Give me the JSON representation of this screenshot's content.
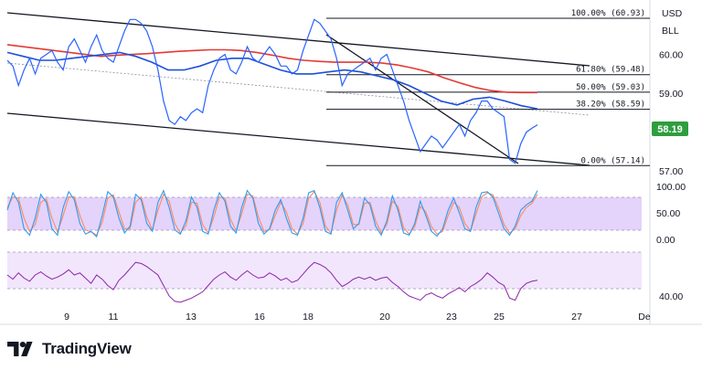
{
  "chart_data": {
    "type": "line",
    "symbol": "USD\nBLL",
    "symbol_lines": [
      "USD",
      "BLL"
    ],
    "x_ticks": [
      "9",
      "11",
      "13",
      "16",
      "18",
      "20",
      "23",
      "25",
      "27",
      "De"
    ],
    "price_ticks": [
      "60.00",
      "59.00",
      "58.00",
      "57.00"
    ],
    "price_range": [
      56.7,
      61.4
    ],
    "last_price": "58.19",
    "fib_levels": [
      {
        "label": "100.00% (60.93)",
        "value": 60.93
      },
      {
        "label": "61.80% (59.48)",
        "value": 59.48
      },
      {
        "label": "50.00% (59.03)",
        "value": 59.03
      },
      {
        "label": "38.20% (58.59)",
        "value": 58.59
      },
      {
        "label": "0.00% (57.14)",
        "value": 57.14
      }
    ],
    "price_series": [
      59.85,
      59.7,
      59.2,
      59.6,
      59.9,
      59.5,
      59.9,
      60.0,
      60.1,
      59.8,
      59.6,
      60.2,
      60.4,
      60.1,
      59.8,
      60.2,
      60.5,
      60.1,
      59.9,
      59.8,
      60.2,
      60.6,
      60.9,
      60.9,
      60.8,
      60.6,
      60.2,
      59.6,
      58.8,
      58.3,
      58.2,
      58.4,
      58.3,
      58.5,
      58.6,
      58.5,
      59.2,
      59.6,
      59.9,
      60.0,
      59.6,
      59.5,
      59.8,
      60.2,
      59.9,
      59.8,
      60.0,
      60.2,
      60.0,
      59.7,
      59.7,
      59.5,
      59.6,
      60.1,
      60.5,
      60.9,
      60.8,
      60.6,
      60.4,
      59.9,
      59.2,
      59.5,
      59.6,
      59.7,
      59.8,
      59.9,
      59.6,
      59.9,
      60.0,
      59.6,
      59.2,
      58.8,
      58.3,
      57.9,
      57.5,
      57.7,
      57.9,
      57.8,
      57.6,
      57.8,
      58.0,
      58.2,
      57.9,
      58.3,
      58.5,
      58.8,
      58.8,
      58.6,
      58.5,
      58.4,
      57.3,
      57.2,
      57.7,
      58.0,
      58.1,
      58.19
    ],
    "sma_red": [
      60.25,
      60.2,
      60.15,
      60.1,
      60.05,
      60.0,
      59.95,
      59.98,
      60.0,
      60.02,
      60.05,
      60.08,
      60.1,
      60.12,
      60.12,
      60.1,
      60.05,
      59.98,
      59.9,
      59.85,
      59.82,
      59.8,
      59.8,
      59.8,
      59.78,
      59.73,
      59.65,
      59.55,
      59.4,
      59.27,
      59.15,
      59.07,
      59.03,
      59.02,
      59.02
    ],
    "sma_blue": [
      60.05,
      59.95,
      59.85,
      59.85,
      59.9,
      59.95,
      60.0,
      60.05,
      59.95,
      59.8,
      59.6,
      59.6,
      59.7,
      59.85,
      59.9,
      59.9,
      59.75,
      59.6,
      59.5,
      59.5,
      59.55,
      59.6,
      59.55,
      59.45,
      59.35,
      59.2,
      59.0,
      58.8,
      58.7,
      58.85,
      58.9,
      58.8,
      58.68,
      58.6
    ],
    "stoch_range": [
      0,
      100
    ],
    "stoch_ticks": [
      "100.00",
      "50.00",
      "0.00"
    ],
    "stoch_k": [
      55,
      88,
      70,
      20,
      8,
      40,
      85,
      70,
      20,
      8,
      60,
      90,
      75,
      30,
      10,
      15,
      5,
      45,
      90,
      80,
      40,
      12,
      25,
      85,
      75,
      30,
      15,
      70,
      92,
      60,
      18,
      10,
      35,
      80,
      60,
      15,
      10,
      55,
      88,
      72,
      25,
      12,
      60,
      92,
      78,
      30,
      10,
      20,
      55,
      75,
      40,
      12,
      8,
      40,
      88,
      92,
      60,
      15,
      10,
      70,
      88,
      55,
      20,
      30,
      78,
      65,
      25,
      8,
      35,
      82,
      55,
      12,
      8,
      30,
      72,
      45,
      15,
      6,
      20,
      55,
      78,
      50,
      20,
      15,
      60,
      88,
      90,
      80,
      50,
      20,
      8,
      25,
      55,
      65,
      72,
      92
    ],
    "stoch_d": [
      60,
      80,
      78,
      40,
      15,
      28,
      70,
      76,
      40,
      14,
      45,
      80,
      80,
      45,
      18,
      14,
      8,
      32,
      78,
      84,
      52,
      20,
      20,
      70,
      80,
      42,
      18,
      55,
      85,
      72,
      30,
      12,
      26,
      70,
      68,
      28,
      12,
      42,
      80,
      78,
      38,
      16,
      48,
      85,
      82,
      42,
      15,
      18,
      45,
      70,
      52,
      20,
      10,
      30,
      78,
      90,
      70,
      25,
      12,
      55,
      84,
      65,
      28,
      28,
      68,
      70,
      35,
      12,
      28,
      72,
      62,
      22,
      10,
      24,
      62,
      52,
      24,
      10,
      15,
      45,
      70,
      60,
      30,
      16,
      48,
      80,
      88,
      84,
      60,
      28,
      12,
      20,
      45,
      60,
      68,
      85
    ],
    "rsi_ticks": [
      "40.00"
    ],
    "rsi_range": [
      0,
      100
    ],
    "rsi": [
      60,
      56,
      62,
      57,
      54,
      60,
      63,
      59,
      56,
      58,
      61,
      65,
      60,
      62,
      57,
      52,
      60,
      56,
      50,
      46,
      55,
      60,
      66,
      72,
      71,
      68,
      64,
      60,
      50,
      40,
      35,
      34,
      36,
      38,
      41,
      44,
      50,
      56,
      60,
      63,
      58,
      55,
      60,
      64,
      60,
      57,
      58,
      62,
      59,
      55,
      57,
      53,
      55,
      61,
      67,
      72,
      70,
      67,
      62,
      55,
      49,
      52,
      56,
      58,
      56,
      58,
      55,
      57,
      58,
      53,
      49,
      44,
      40,
      38,
      36,
      41,
      43,
      40,
      38,
      42,
      45,
      48,
      44,
      49,
      52,
      56,
      62,
      58,
      53,
      50,
      38,
      36,
      47,
      52,
      54,
      55
    ]
  },
  "brand": {
    "name": "TradingView"
  },
  "colors": {
    "price_line": "#2962ff",
    "sma_red": "#e53935",
    "sma_blue": "#1e4fd8",
    "stoch_k": "#2e9bf0",
    "stoch_d": "#ff8a5b",
    "stoch_band": "#e4d3fb",
    "rsi_line": "#8e24aa",
    "rsi_band": "#f1e6fc",
    "last_price_bg": "#2e9e3e",
    "trendline": "#131722"
  }
}
